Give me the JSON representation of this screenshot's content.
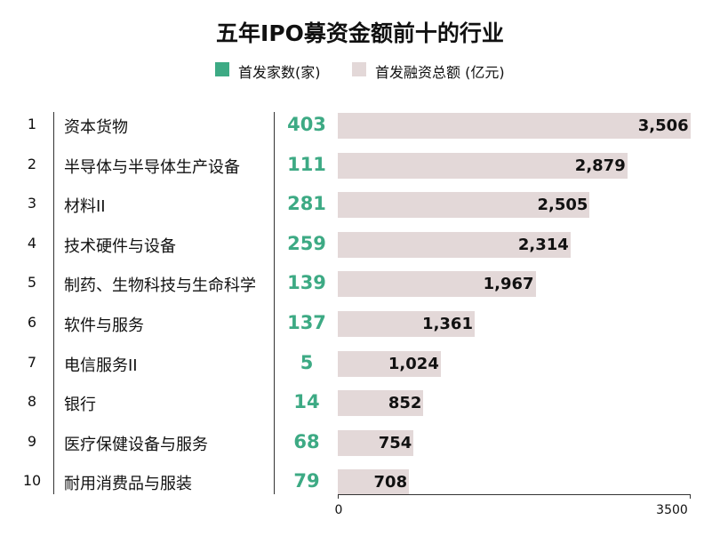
{
  "chart_data": {
    "type": "bar",
    "title": "五年IPO募资金额前十的行业",
    "legend": [
      {
        "label": "首发家数(家)",
        "color": "#3daa84"
      },
      {
        "label": "首发融资总额 (亿元)",
        "color": "#e3d8d8"
      }
    ],
    "categories": [
      "资本货物",
      "半导体与半导体生产设备",
      "材料II",
      "技术硬件与设备",
      "制药、生物科技与生命科学",
      "软件与服务",
      "电信服务II",
      "银行",
      "医疗保健设备与服务",
      "耐用消费品与服装"
    ],
    "ranks": [
      "1",
      "2",
      "3",
      "4",
      "5",
      "6",
      "7",
      "8",
      "9",
      "10"
    ],
    "series": [
      {
        "name": "首发家数(家)",
        "values": [
          403,
          111,
          281,
          259,
          139,
          137,
          5,
          14,
          68,
          79
        ]
      },
      {
        "name": "首发融资总额 (亿元)",
        "values": [
          3506,
          2879,
          2505,
          2314,
          1967,
          1361,
          1024,
          852,
          754,
          708
        ]
      }
    ],
    "value_labels": [
      "3,506",
      "2,879",
      "2,505",
      "2,314",
      "1,967",
      "1,361",
      "1,024",
      "852",
      "754",
      "708"
    ],
    "xlim": [
      0,
      3500
    ],
    "x_tick_labels": [
      "0",
      "3500"
    ]
  }
}
